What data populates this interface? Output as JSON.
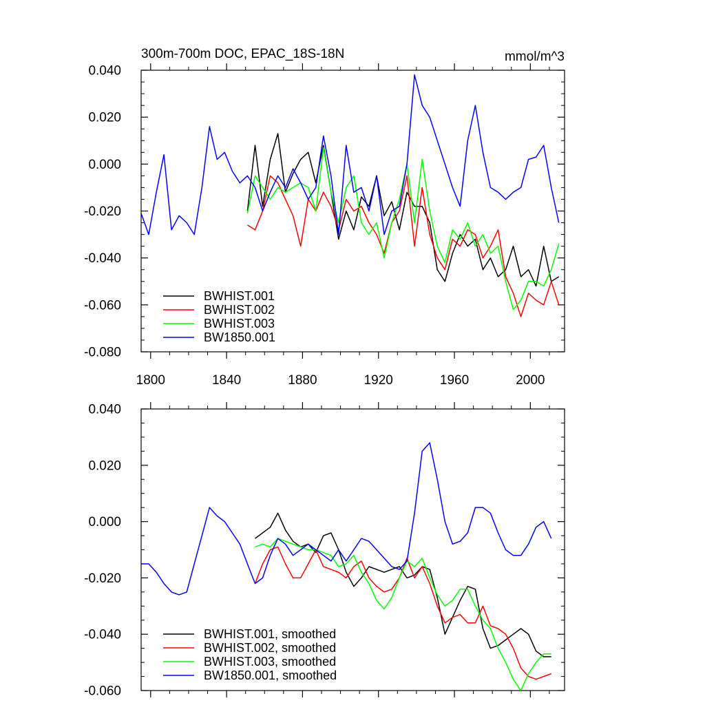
{
  "header": {
    "title": "300m-700m DOC, EPAC_18S-18N",
    "units": "mmol/m^3"
  },
  "colors": {
    "BWHIST.001": "#000000",
    "BWHIST.002": "#ff0000",
    "BWHIST.003": "#00ff00",
    "BW1850.001": "#0000ff"
  },
  "chart_data": [
    {
      "type": "line",
      "title": "300m-700m DOC, EPAC_18S-18N",
      "units_label": "mmol/m^3",
      "xlim": [
        1795,
        2018
      ],
      "ylim": [
        -0.08,
        0.04
      ],
      "xticks": [
        1800,
        1840,
        1880,
        1920,
        1960,
        2000
      ],
      "xtick_labels": [
        "1800",
        "1840",
        "1880",
        "1920",
        "1960",
        "2000"
      ],
      "yticks": [
        -0.08,
        -0.06,
        -0.04,
        -0.02,
        0.0,
        0.02,
        0.04
      ],
      "ytick_labels": [
        "-0.080",
        "-0.060",
        "-0.040",
        "-0.020",
        "0.000",
        "0.020",
        "0.040"
      ],
      "legend": "bottom-left",
      "series": [
        {
          "name": "BWHIST.001",
          "x": [
            1851,
            1855,
            1859,
            1863,
            1867,
            1871,
            1875,
            1879,
            1883,
            1887,
            1891,
            1895,
            1899,
            1903,
            1907,
            1911,
            1915,
            1919,
            1923,
            1927,
            1931,
            1935,
            1939,
            1943,
            1947,
            1951,
            1955,
            1959,
            1963,
            1967,
            1971,
            1975,
            1979,
            1983,
            1987,
            1991,
            1995,
            1999,
            2003,
            2007,
            2011,
            2015
          ],
          "y": [
            -0.02,
            0.008,
            -0.018,
            0.002,
            0.013,
            -0.012,
            -0.004,
            0.002,
            0.005,
            -0.008,
            0.008,
            -0.012,
            -0.032,
            -0.02,
            -0.028,
            -0.014,
            -0.018,
            -0.005,
            -0.022,
            -0.016,
            -0.028,
            -0.012,
            -0.018,
            -0.018,
            -0.025,
            -0.045,
            -0.05,
            -0.038,
            -0.03,
            -0.035,
            -0.032,
            -0.045,
            -0.04,
            -0.048,
            -0.045,
            -0.035,
            -0.048,
            -0.045,
            -0.052,
            -0.035,
            -0.05,
            -0.048
          ]
        },
        {
          "name": "BWHIST.002",
          "x": [
            1851,
            1855,
            1859,
            1863,
            1867,
            1871,
            1875,
            1879,
            1883,
            1887,
            1891,
            1895,
            1899,
            1903,
            1907,
            1911,
            1915,
            1919,
            1923,
            1927,
            1931,
            1935,
            1939,
            1943,
            1947,
            1951,
            1955,
            1959,
            1963,
            1967,
            1971,
            1975,
            1979,
            1983,
            1987,
            1991,
            1995,
            1999,
            2003,
            2007,
            2011,
            2015
          ],
          "y": [
            -0.026,
            -0.028,
            -0.02,
            -0.005,
            -0.008,
            -0.015,
            -0.022,
            -0.035,
            -0.015,
            -0.02,
            -0.012,
            -0.018,
            -0.028,
            -0.015,
            -0.02,
            -0.018,
            -0.025,
            -0.03,
            -0.038,
            -0.025,
            -0.02,
            -0.005,
            -0.035,
            -0.01,
            -0.03,
            -0.04,
            -0.045,
            -0.032,
            -0.035,
            -0.028,
            -0.03,
            -0.04,
            -0.035,
            -0.028,
            -0.048,
            -0.055,
            -0.065,
            -0.055,
            -0.058,
            -0.06,
            -0.05,
            -0.06
          ]
        },
        {
          "name": "BWHIST.003",
          "x": [
            1851,
            1855,
            1859,
            1863,
            1867,
            1871,
            1875,
            1879,
            1883,
            1887,
            1891,
            1895,
            1899,
            1903,
            1907,
            1911,
            1915,
            1919,
            1923,
            1927,
            1931,
            1935,
            1939,
            1943,
            1947,
            1951,
            1955,
            1959,
            1963,
            1967,
            1971,
            1975,
            1979,
            1983,
            1987,
            1991,
            1995,
            1999,
            2003,
            2007,
            2011,
            2015
          ],
          "y": [
            -0.021,
            -0.005,
            -0.01,
            -0.015,
            -0.01,
            -0.012,
            -0.01,
            -0.008,
            -0.01,
            -0.02,
            0.007,
            -0.012,
            -0.025,
            -0.01,
            -0.005,
            -0.025,
            -0.03,
            -0.025,
            -0.04,
            -0.025,
            -0.015,
            0.0,
            -0.025,
            0.002,
            -0.02,
            -0.035,
            -0.042,
            -0.028,
            -0.032,
            -0.025,
            -0.035,
            -0.03,
            -0.038,
            -0.035,
            -0.05,
            -0.062,
            -0.058,
            -0.05,
            -0.05,
            -0.052,
            -0.045,
            -0.034
          ]
        },
        {
          "name": "BW1850.001",
          "x": [
            1795,
            1799,
            1803,
            1807,
            1811,
            1815,
            1819,
            1823,
            1827,
            1831,
            1835,
            1839,
            1843,
            1847,
            1851,
            1855,
            1859,
            1863,
            1867,
            1871,
            1875,
            1879,
            1883,
            1887,
            1891,
            1895,
            1899,
            1903,
            1907,
            1911,
            1915,
            1919,
            1923,
            1927,
            1931,
            1935,
            1939,
            1943,
            1947,
            1951,
            1955,
            1959,
            1963,
            1967,
            1971,
            1975,
            1979,
            1983,
            1987,
            1991,
            1995,
            1999,
            2003,
            2007,
            2011,
            2015
          ],
          "y": [
            -0.021,
            -0.03,
            -0.012,
            0.004,
            -0.028,
            -0.022,
            -0.025,
            -0.03,
            -0.01,
            0.016,
            0.002,
            0.005,
            -0.003,
            -0.008,
            -0.005,
            -0.01,
            -0.02,
            -0.012,
            -0.005,
            -0.01,
            -0.002,
            -0.008,
            -0.015,
            -0.01,
            0.012,
            -0.005,
            -0.03,
            0.008,
            -0.012,
            -0.01,
            -0.02,
            -0.005,
            -0.03,
            -0.02,
            -0.018,
            0.0,
            0.038,
            0.025,
            0.02,
            0.01,
            0.0,
            -0.01,
            -0.018,
            0.01,
            0.025,
            0.005,
            -0.01,
            -0.012,
            -0.015,
            -0.012,
            -0.01,
            0.002,
            0.003,
            0.008,
            -0.01,
            -0.025
          ]
        }
      ]
    },
    {
      "type": "line",
      "title": "",
      "xlim": [
        1795,
        2018
      ],
      "ylim": [
        -0.06,
        0.04
      ],
      "xticks": [
        1800,
        1840,
        1880,
        1920,
        1960,
        2000
      ],
      "xtick_labels": [],
      "yticks": [
        -0.06,
        -0.04,
        -0.02,
        0.0,
        0.02,
        0.04
      ],
      "ytick_labels": [
        "-0.060",
        "-0.040",
        "-0.020",
        "0.000",
        "0.020",
        "0.040"
      ],
      "legend": "bottom-left",
      "series": [
        {
          "name": "BWHIST.001, smoothed",
          "x": [
            1855,
            1859,
            1863,
            1867,
            1871,
            1875,
            1879,
            1883,
            1887,
            1891,
            1895,
            1899,
            1903,
            1907,
            1911,
            1915,
            1919,
            1923,
            1927,
            1931,
            1935,
            1939,
            1943,
            1947,
            1951,
            1955,
            1959,
            1963,
            1967,
            1971,
            1975,
            1979,
            1983,
            1987,
            1991,
            1995,
            1999,
            2003,
            2007,
            2011
          ],
          "y": [
            -0.006,
            -0.004,
            -0.002,
            0.003,
            -0.003,
            -0.007,
            -0.009,
            -0.008,
            -0.011,
            -0.005,
            -0.004,
            -0.01,
            -0.018,
            -0.023,
            -0.02,
            -0.016,
            -0.017,
            -0.018,
            -0.017,
            -0.016,
            -0.02,
            -0.019,
            -0.016,
            -0.017,
            -0.027,
            -0.04,
            -0.034,
            -0.028,
            -0.023,
            -0.024,
            -0.038,
            -0.045,
            -0.044,
            -0.042,
            -0.04,
            -0.038,
            -0.04,
            -0.046,
            -0.048,
            -0.048
          ]
        },
        {
          "name": "BWHIST.002, smoothed",
          "x": [
            1855,
            1859,
            1863,
            1867,
            1871,
            1875,
            1879,
            1883,
            1887,
            1891,
            1895,
            1899,
            1903,
            1907,
            1911,
            1915,
            1919,
            1923,
            1927,
            1931,
            1935,
            1939,
            1943,
            1947,
            1951,
            1955,
            1959,
            1963,
            1967,
            1971,
            1975,
            1979,
            1983,
            1987,
            1991,
            1995,
            1999,
            2003,
            2007,
            2011
          ],
          "y": [
            -0.022,
            -0.015,
            -0.01,
            -0.009,
            -0.015,
            -0.02,
            -0.02,
            -0.015,
            -0.01,
            -0.016,
            -0.017,
            -0.018,
            -0.02,
            -0.016,
            -0.014,
            -0.02,
            -0.023,
            -0.025,
            -0.024,
            -0.02,
            -0.013,
            -0.02,
            -0.016,
            -0.022,
            -0.03,
            -0.036,
            -0.034,
            -0.033,
            -0.036,
            -0.036,
            -0.03,
            -0.037,
            -0.038,
            -0.04,
            -0.045,
            -0.052,
            -0.055,
            -0.056,
            -0.055,
            -0.054
          ]
        },
        {
          "name": "BWHIST.003, smoothed",
          "x": [
            1855,
            1859,
            1863,
            1867,
            1871,
            1875,
            1879,
            1883,
            1887,
            1891,
            1895,
            1899,
            1903,
            1907,
            1911,
            1915,
            1919,
            1923,
            1927,
            1931,
            1935,
            1939,
            1943,
            1947,
            1951,
            1955,
            1959,
            1963,
            1967,
            1971,
            1975,
            1979,
            1983,
            1987,
            1991,
            1995,
            1999,
            2003,
            2007,
            2011
          ],
          "y": [
            -0.009,
            -0.008,
            -0.009,
            -0.006,
            -0.007,
            -0.008,
            -0.009,
            -0.01,
            -0.01,
            -0.011,
            -0.012,
            -0.016,
            -0.015,
            -0.012,
            -0.018,
            -0.022,
            -0.028,
            -0.031,
            -0.027,
            -0.02,
            -0.014,
            -0.016,
            -0.013,
            -0.02,
            -0.026,
            -0.03,
            -0.028,
            -0.024,
            -0.024,
            -0.03,
            -0.035,
            -0.038,
            -0.045,
            -0.05,
            -0.056,
            -0.06,
            -0.054,
            -0.05,
            -0.047,
            -0.047
          ]
        },
        {
          "name": "BW1850.001, smoothed",
          "x": [
            1795,
            1799,
            1803,
            1807,
            1811,
            1815,
            1819,
            1823,
            1827,
            1831,
            1835,
            1839,
            1843,
            1847,
            1851,
            1855,
            1859,
            1863,
            1867,
            1871,
            1875,
            1879,
            1883,
            1887,
            1891,
            1895,
            1899,
            1903,
            1907,
            1911,
            1915,
            1919,
            1923,
            1927,
            1931,
            1935,
            1939,
            1943,
            1947,
            1951,
            1955,
            1959,
            1963,
            1967,
            1971,
            1975,
            1979,
            1983,
            1987,
            1991,
            1995,
            1999,
            2003,
            2007,
            2011
          ],
          "y": [
            -0.015,
            -0.015,
            -0.018,
            -0.022,
            -0.025,
            -0.026,
            -0.025,
            -0.015,
            -0.005,
            0.005,
            0.002,
            0.0,
            -0.004,
            -0.008,
            -0.015,
            -0.022,
            -0.02,
            -0.012,
            -0.006,
            -0.008,
            -0.012,
            -0.01,
            -0.008,
            -0.01,
            -0.012,
            -0.014,
            -0.01,
            -0.014,
            -0.01,
            -0.006,
            -0.007,
            -0.01,
            -0.013,
            -0.016,
            -0.017,
            -0.014,
            0.003,
            0.025,
            0.028,
            0.015,
            0.0,
            -0.008,
            -0.007,
            -0.004,
            0.005,
            0.005,
            0.003,
            -0.004,
            -0.01,
            -0.012,
            -0.012,
            -0.008,
            -0.002,
            0.0,
            -0.006
          ]
        }
      ]
    }
  ]
}
